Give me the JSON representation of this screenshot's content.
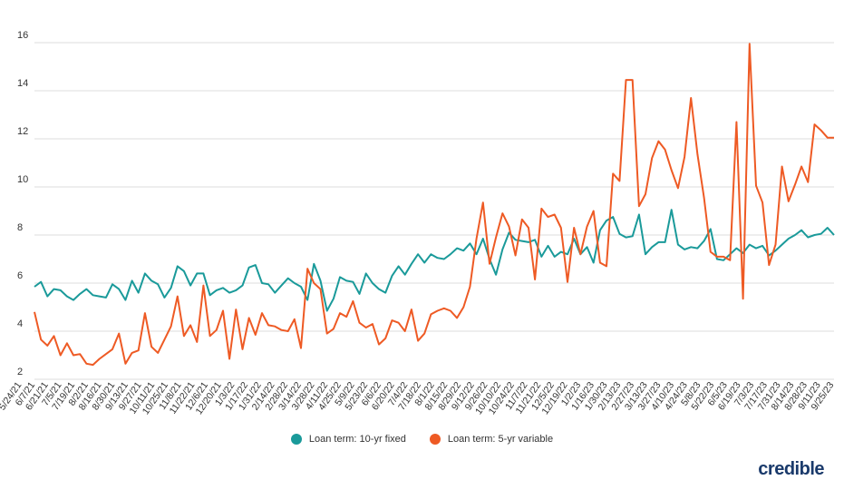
{
  "chart_data": {
    "type": "line",
    "title": "",
    "xlabel": "",
    "ylabel": "",
    "ylim": [
      2,
      16
    ],
    "yticks": [
      2,
      4,
      6,
      8,
      10,
      12,
      14,
      16
    ],
    "grid": "horizontal",
    "legend": "bottom-center",
    "x_tick_labels": [
      "5/24/21",
      "6/7/21",
      "6/21/21",
      "7/5/21",
      "7/19/21",
      "8/2/21",
      "8/16/21",
      "8/30/21",
      "9/13/21",
      "9/27/21",
      "10/11/21",
      "10/25/21",
      "11/8/21",
      "11/22/21",
      "12/6/21",
      "12/20/21",
      "1/3/22",
      "1/17/22",
      "1/31/22",
      "2/14/22",
      "2/28/22",
      "3/14/22",
      "3/28/22",
      "4/11/22",
      "4/25/22",
      "5/9/22",
      "5/23/22",
      "6/6/22",
      "6/20/22",
      "7/4/22",
      "7/18/22",
      "8/1/22",
      "8/15/22",
      "8/29/22",
      "9/12/22",
      "9/26/22",
      "10/10/22",
      "10/24/22",
      "11/7/22",
      "11/21/22",
      "12/5/22",
      "12/19/22",
      "1/2/23",
      "1/16/23",
      "1/30/23",
      "2/13/23",
      "2/27/23",
      "3/13/23",
      "3/27/23",
      "4/10/23",
      "4/24/23",
      "5/8/23",
      "5/22/23",
      "6/5/23",
      "6/19/23",
      "7/3/23",
      "7/17/23",
      "7/31/23",
      "8/14/23",
      "8/28/23",
      "9/11/23",
      "9/25/23"
    ],
    "series": [
      {
        "name": "Loan term: 10-yr fixed",
        "color": "#1a9a9a",
        "values": [
          5.85,
          6.05,
          5.45,
          5.75,
          5.7,
          5.45,
          5.3,
          5.55,
          5.75,
          5.5,
          5.45,
          5.4,
          5.95,
          5.75,
          5.3,
          6.1,
          5.6,
          6.4,
          6.1,
          5.95,
          5.4,
          5.8,
          6.7,
          6.5,
          5.9,
          6.4,
          6.4,
          5.5,
          5.7,
          5.8,
          5.6,
          5.7,
          5.9,
          6.65,
          6.75,
          6.0,
          5.95,
          5.6,
          5.9,
          6.2,
          6.0,
          5.85,
          5.3,
          6.8,
          6.1,
          4.85,
          5.35,
          6.25,
          6.1,
          6.05,
          5.55,
          6.4,
          6.0,
          5.75,
          5.6,
          6.3,
          6.7,
          6.35,
          6.8,
          7.2,
          6.85,
          7.2,
          7.05,
          7.0,
          7.2,
          7.45,
          7.35,
          7.65,
          7.2,
          7.85,
          7.0,
          6.35,
          7.4,
          8.1,
          7.8,
          7.75,
          7.7,
          7.8,
          7.1,
          7.55,
          7.1,
          7.3,
          7.2,
          7.85,
          7.2,
          7.5,
          6.85,
          8.2,
          8.6,
          8.75,
          8.05,
          7.9,
          7.95,
          8.85,
          7.2,
          7.5,
          7.7,
          7.7,
          9.05,
          7.6,
          7.4,
          7.5,
          7.45,
          7.75,
          8.25,
          7.0,
          6.95,
          7.2,
          7.45,
          7.25,
          7.6,
          7.45,
          7.55,
          7.15,
          7.35,
          7.6,
          7.85,
          8.0,
          8.2,
          7.9,
          8.0,
          8.05,
          8.3,
          8.0
        ]
      },
      {
        "name": "Loan term: 5-yr variable",
        "color": "#ee5a24",
        "values": [
          4.8,
          3.65,
          3.4,
          3.8,
          3.0,
          3.5,
          3.0,
          3.05,
          2.65,
          2.6,
          2.85,
          3.05,
          3.25,
          3.9,
          2.65,
          3.1,
          3.2,
          4.75,
          3.35,
          3.1,
          3.65,
          4.2,
          5.45,
          3.8,
          4.25,
          3.55,
          5.9,
          3.8,
          4.05,
          4.85,
          2.85,
          4.9,
          3.25,
          4.55,
          3.85,
          4.75,
          4.25,
          4.2,
          4.05,
          4.0,
          4.5,
          3.3,
          6.6,
          6.0,
          5.75,
          3.9,
          4.1,
          4.75,
          4.6,
          5.25,
          4.35,
          4.15,
          4.3,
          3.45,
          3.7,
          4.45,
          4.35,
          4.0,
          4.9,
          3.6,
          3.9,
          4.7,
          4.85,
          4.95,
          4.85,
          4.55,
          5.0,
          5.85,
          7.85,
          9.35,
          6.8,
          7.9,
          8.9,
          8.35,
          7.15,
          8.65,
          8.3,
          6.15,
          9.1,
          8.75,
          8.85,
          8.3,
          6.05,
          8.3,
          7.2,
          8.35,
          9.0,
          6.85,
          6.7,
          10.55,
          10.25,
          14.45,
          14.45,
          9.2,
          9.7,
          11.2,
          11.9,
          11.55,
          10.7,
          9.95,
          11.25,
          13.7,
          11.35,
          9.55,
          7.3,
          7.1,
          7.1,
          6.95,
          12.7,
          5.35,
          15.95,
          10.05,
          9.35,
          6.75,
          7.6,
          10.85,
          9.4,
          10.1,
          10.85,
          10.2,
          12.6,
          12.35,
          12.05,
          12.05
        ]
      }
    ]
  },
  "legend": {
    "item1_label": "Loan term: 10-yr fixed",
    "item2_label": "Loan term: 5-yr variable"
  },
  "brand": {
    "logo_text": "credible"
  }
}
